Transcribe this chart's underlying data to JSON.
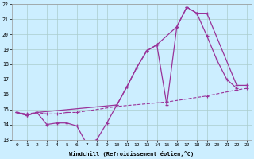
{
  "xlabel": "Windchill (Refroidissement éolien,°C)",
  "bg_color": "#cceeff",
  "grid_color": "#aacccc",
  "line_color": "#993399",
  "xlim": [
    -0.5,
    23.5
  ],
  "ylim": [
    13,
    22
  ],
  "xticks": [
    0,
    1,
    2,
    3,
    4,
    5,
    6,
    7,
    8,
    9,
    10,
    11,
    12,
    13,
    14,
    15,
    16,
    17,
    18,
    19,
    20,
    21,
    22,
    23
  ],
  "yticks": [
    13,
    14,
    15,
    16,
    17,
    18,
    19,
    20,
    21,
    22
  ],
  "line1_x": [
    0,
    1,
    2,
    3,
    4,
    5,
    6,
    7,
    8,
    9,
    10,
    11,
    12,
    13,
    14,
    15,
    16,
    17,
    18,
    19,
    20,
    21,
    22
  ],
  "line1_y": [
    14.8,
    14.6,
    14.8,
    14.0,
    14.1,
    14.1,
    13.9,
    12.7,
    13.0,
    14.1,
    15.3,
    16.5,
    17.8,
    18.9,
    19.3,
    15.3,
    20.5,
    21.8,
    21.4,
    19.9,
    18.3,
    17.0,
    16.4
  ],
  "line2_x": [
    0,
    1,
    2,
    10,
    11,
    12,
    13,
    14,
    16,
    17,
    18,
    19,
    22,
    23
  ],
  "line2_y": [
    14.8,
    14.6,
    14.8,
    15.3,
    16.5,
    17.8,
    18.9,
    19.3,
    20.5,
    21.8,
    21.4,
    21.4,
    16.6,
    16.6
  ],
  "line3_x": [
    0,
    1,
    2,
    3,
    4,
    5,
    6,
    10,
    15,
    19,
    22,
    23
  ],
  "line3_y": [
    14.8,
    14.7,
    14.8,
    14.7,
    14.7,
    14.8,
    14.8,
    15.2,
    15.5,
    15.9,
    16.3,
    16.4
  ]
}
